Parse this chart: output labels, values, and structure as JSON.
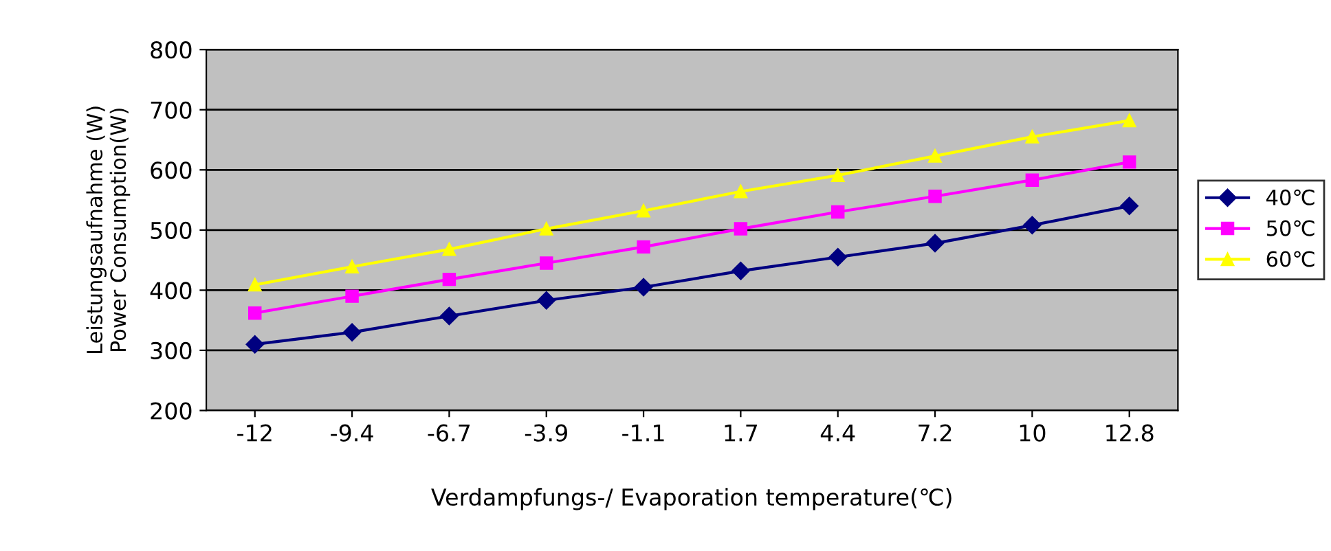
{
  "chart_data": {
    "type": "line",
    "xlabel": "Verdampfungs-/ Evaporation temperature(℃)",
    "ylabel": "Leistungsaufnahme (W)\nPower Consumption(W)",
    "categories": [
      "-12",
      "-9.4",
      "-6.7",
      "-3.9",
      "-1.1",
      "1.7",
      "4.4",
      "7.2",
      "10",
      "12.8"
    ],
    "series": [
      {
        "name": "40℃",
        "color": "#000080",
        "marker": "diamond",
        "values": [
          310,
          330,
          357,
          383,
          405,
          432,
          455,
          478,
          508,
          540
        ]
      },
      {
        "name": "50℃",
        "color": "#ff00ff",
        "marker": "square",
        "values": [
          362,
          390,
          418,
          445,
          472,
          502,
          530,
          556,
          583,
          613
        ]
      },
      {
        "name": "60℃",
        "color": "#ffff00",
        "marker": "triangle",
        "values": [
          409,
          439,
          468,
          502,
          532,
          564,
          591,
          623,
          655,
          682
        ]
      }
    ],
    "ylim": [
      200,
      800
    ],
    "yticks": [
      200,
      300,
      400,
      500,
      600,
      700,
      800
    ],
    "grid": "y",
    "legend": "right",
    "line_style": "solid"
  }
}
